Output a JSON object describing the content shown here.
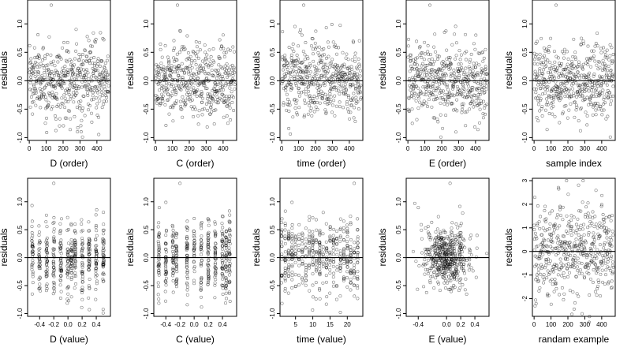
{
  "chart_data": [
    {
      "type": "scatter",
      "xlabel": "D (order)",
      "ylabel": "residuals",
      "xlim": [
        -10,
        480
      ],
      "ylim": [
        -1.05,
        1.42
      ],
      "xticks": [
        0,
        100,
        200,
        300,
        400
      ],
      "yticks": [
        -1.0,
        -0.5,
        0.0,
        0.5,
        1.0
      ],
      "xtick_labels": [
        "0",
        "100",
        "200",
        "300",
        "400"
      ],
      "ytick_labels": [
        "-1.0",
        "-0.5",
        "0.0",
        "0.5",
        "1.0"
      ],
      "hline": 0,
      "n": 470,
      "sd": 0.33,
      "pattern": "order",
      "x": [],
      "y": []
    },
    {
      "type": "scatter",
      "xlabel": "C (order)",
      "ylabel": "residuals",
      "xlim": [
        -10,
        480
      ],
      "ylim": [
        -1.05,
        1.42
      ],
      "xticks": [
        0,
        100,
        200,
        300,
        400
      ],
      "yticks": [
        -1.0,
        -0.5,
        0.0,
        0.5,
        1.0
      ],
      "xtick_labels": [
        "0",
        "100",
        "200",
        "300",
        "400"
      ],
      "ytick_labels": [
        "-1.0",
        "-0.5",
        "0.0",
        "0.5",
        "1.0"
      ],
      "hline": 0,
      "n": 470,
      "sd": 0.33,
      "pattern": "order",
      "x": [],
      "y": []
    },
    {
      "type": "scatter",
      "xlabel": "time (order)",
      "ylabel": "residuals",
      "xlim": [
        -10,
        480
      ],
      "ylim": [
        -1.05,
        1.42
      ],
      "xticks": [
        0,
        100,
        200,
        300,
        400
      ],
      "yticks": [
        -1.0,
        -0.5,
        0.0,
        0.5,
        1.0
      ],
      "xtick_labels": [
        "0",
        "100",
        "200",
        "300",
        "400"
      ],
      "ytick_labels": [
        "-1.0",
        "-0.5",
        "0.0",
        "0.5",
        "1.0"
      ],
      "hline": 0,
      "n": 470,
      "sd": 0.33,
      "pattern": "order",
      "x": [],
      "y": []
    },
    {
      "type": "scatter",
      "xlabel": "E (order)",
      "ylabel": "residuals",
      "xlim": [
        -10,
        480
      ],
      "ylim": [
        -1.05,
        1.42
      ],
      "xticks": [
        0,
        100,
        200,
        300,
        400
      ],
      "yticks": [
        -1.0,
        -0.5,
        0.0,
        0.5,
        1.0
      ],
      "xtick_labels": [
        "0",
        "100",
        "200",
        "300",
        "400"
      ],
      "ytick_labels": [
        "-1.0",
        "-0.5",
        "0.0",
        "0.5",
        "1.0"
      ],
      "hline": 0,
      "n": 470,
      "sd": 0.33,
      "pattern": "order",
      "x": [],
      "y": []
    },
    {
      "type": "scatter",
      "xlabel": "sample index",
      "ylabel": "residuals",
      "xlim": [
        -10,
        480
      ],
      "ylim": [
        -1.05,
        1.42
      ],
      "xticks": [
        0,
        100,
        200,
        300,
        400
      ],
      "yticks": [
        -1.0,
        -0.5,
        0.0,
        0.5,
        1.0
      ],
      "xtick_labels": [
        "0",
        "100",
        "200",
        "300",
        "400"
      ],
      "ytick_labels": [
        "-1.0",
        "-0.5",
        "0.0",
        "0.5",
        "1.0"
      ],
      "hline": 0,
      "n": 470,
      "sd": 0.33,
      "pattern": "order",
      "x": [],
      "y": []
    },
    {
      "type": "scatter",
      "xlabel": "D (value)",
      "ylabel": "residuals",
      "xlim": [
        -0.57,
        0.6
      ],
      "ylim": [
        -1.05,
        1.42
      ],
      "xticks": [
        -0.4,
        -0.2,
        0.0,
        0.2,
        0.4
      ],
      "yticks": [
        -1.0,
        -0.5,
        0.0,
        0.5,
        1.0
      ],
      "xtick_labels": [
        "-0.4",
        "-0.2",
        "0.0",
        "0.2",
        "0.4"
      ],
      "ytick_labels": [
        "-1.0",
        "-0.5",
        "0.0",
        "0.5",
        "1.0"
      ],
      "hline": 0,
      "n": 470,
      "sd": 0.33,
      "pattern": "d_value",
      "x": [],
      "y": []
    },
    {
      "type": "scatter",
      "xlabel": "C (value)",
      "ylabel": "residuals",
      "xlim": [
        -0.57,
        0.6
      ],
      "ylim": [
        -1.05,
        1.42
      ],
      "xticks": [
        -0.4,
        -0.2,
        0.0,
        0.2,
        0.4
      ],
      "yticks": [
        -1.0,
        -0.5,
        0.0,
        0.5,
        1.0
      ],
      "xtick_labels": [
        "-0.4",
        "-0.2",
        "0.0",
        "0.2",
        "0.4"
      ],
      "ytick_labels": [
        "-1.0",
        "-0.5",
        "0.0",
        "0.5",
        "1.0"
      ],
      "hline": 0,
      "n": 470,
      "sd": 0.33,
      "pattern": "c_value",
      "x": [],
      "y": []
    },
    {
      "type": "scatter",
      "xlabel": "time (value)",
      "ylabel": "residuals",
      "xlim": [
        0.5,
        24.5
      ],
      "ylim": [
        -1.05,
        1.42
      ],
      "xticks": [
        5,
        10,
        15,
        20
      ],
      "yticks": [
        -1.0,
        -0.5,
        0.0,
        0.5,
        1.0
      ],
      "xtick_labels": [
        "5",
        "10",
        "15",
        "20"
      ],
      "ytick_labels": [
        "-1.0",
        "-0.5",
        "0.0",
        "0.5",
        "1.0"
      ],
      "hline": 0,
      "n": 470,
      "sd": 0.33,
      "pattern": "time_value",
      "x": [],
      "y": []
    },
    {
      "type": "scatter",
      "xlabel": "E (value)",
      "ylabel": "residuals",
      "xlim": [
        -0.57,
        0.6
      ],
      "ylim": [
        -1.05,
        1.42
      ],
      "xticks": [
        -0.4,
        0.0,
        0.2,
        0.4
      ],
      "yticks": [
        -1.0,
        -0.5,
        0.0,
        0.5,
        1.0
      ],
      "xtick_labels": [
        "-0.4",
        "0.0",
        "0.2",
        "0.4"
      ],
      "ytick_labels": [
        "-1.0",
        "-0.5",
        "0.0",
        "0.5",
        "1.0"
      ],
      "hline": 0,
      "n": 470,
      "sd": 0.33,
      "pattern": "e_value",
      "x": [],
      "y": []
    },
    {
      "type": "scatter",
      "xlabel": "randam example",
      "ylabel": "residuals",
      "xlim": [
        -10,
        480
      ],
      "ylim": [
        -2.75,
        3.1
      ],
      "xticks": [
        0,
        100,
        200,
        300,
        400
      ],
      "yticks": [
        -2,
        -1,
        0,
        1,
        2,
        3
      ],
      "xtick_labels": [
        "0",
        "100",
        "200",
        "300",
        "400"
      ],
      "ytick_labels": [
        "-2",
        "-1",
        "0",
        "1",
        "2",
        "3"
      ],
      "hline": 0,
      "n": 470,
      "sd": 1.0,
      "pattern": "order",
      "x": [],
      "y": []
    }
  ]
}
